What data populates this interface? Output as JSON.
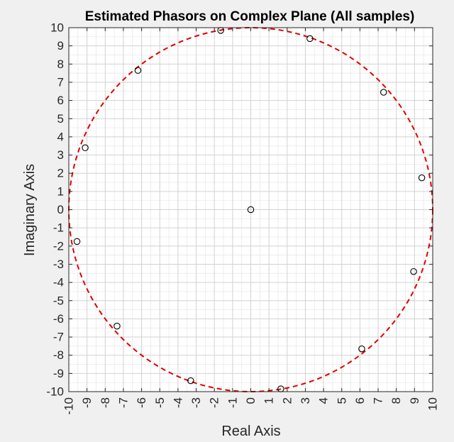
{
  "chart_data": {
    "type": "scatter",
    "title": "Estimated Phasors on Complex Plane (All samples)",
    "xlabel": "Real Axis",
    "ylabel": "Imaginary Axis",
    "xlim": [
      -10,
      10
    ],
    "ylim": [
      -10,
      10
    ],
    "xticks": [
      -10,
      -9,
      -8,
      -7,
      -6,
      -5,
      -4,
      -3,
      -2,
      -1,
      0,
      1,
      2,
      3,
      4,
      5,
      6,
      7,
      8,
      9,
      10
    ],
    "yticks": [
      -10,
      -9,
      -8,
      -7,
      -6,
      -5,
      -4,
      -3,
      -2,
      -1,
      0,
      1,
      2,
      3,
      4,
      5,
      6,
      7,
      8,
      9,
      10
    ],
    "grid": true,
    "minor_grid": true,
    "series": [
      {
        "marker": "circle-open",
        "color": "#000000",
        "points": [
          {
            "x": 0.0,
            "y": 0.0
          },
          {
            "x": 9.4,
            "y": 1.75
          },
          {
            "x": 8.95,
            "y": -3.4
          },
          {
            "x": 6.1,
            "y": -7.65
          },
          {
            "x": 1.65,
            "y": -9.85
          },
          {
            "x": -3.3,
            "y": -9.4
          },
          {
            "x": -7.35,
            "y": -6.4
          },
          {
            "x": -9.55,
            "y": -1.75
          },
          {
            "x": -9.1,
            "y": 3.4
          },
          {
            "x": -6.2,
            "y": 7.65
          },
          {
            "x": -1.65,
            "y": 9.85
          },
          {
            "x": 3.25,
            "y": 9.4
          },
          {
            "x": 7.3,
            "y": 6.45
          }
        ]
      },
      {
        "type": "circle-reference",
        "center": [
          0,
          0
        ],
        "radius": 10,
        "color": "#e00000",
        "linestyle": "dashed"
      }
    ]
  }
}
